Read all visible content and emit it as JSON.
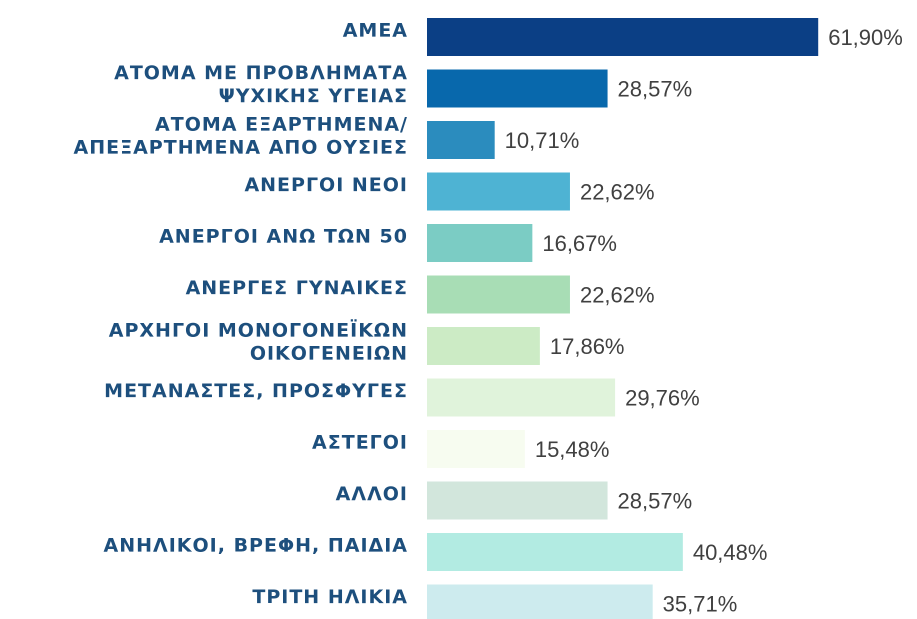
{
  "chart_data": {
    "type": "bar",
    "orientation": "horizontal",
    "categories": [
      "ΑΜΕΑ",
      "ΑΤΟΜΑ ΜΕ ΠΡΟΒΛΗΜΑΤΑ\nΨΥΧΙΚΗΣ ΥΓΕΙΑΣ",
      "ΑΤΟΜΑ ΕΞΑΡΤΗΜΕΝΑ/\nΑΠΕΞΑΡΤΗΜΕΝΑ ΑΠΟ ΟΥΣΙΕΣ",
      "ΑΝΕΡΓΟΙ ΝΕΟΙ",
      "ΑΝΕΡΓΟΙ ΑΝΩ ΤΩΝ 50",
      "ΑΝΕΡΓΕΣ ΓΥΝΑΙΚΕΣ",
      "ΑΡΧΗΓΟΙ ΜΟΝΟΓΟΝΕΪΚΩΝ\nΟΙΚΟΓΕΝΕΙΩΝ",
      "ΜΕΤΑΝΑΣΤΕΣ, ΠΡΟΣΦΥΓΕΣ",
      "ΑΣΤΕΓΟΙ",
      "ΑΛΛΟΙ",
      "ΑΝΗΛΙΚΟΙ, ΒΡΕΦΗ, ΠΑΙΔΙΑ",
      "ΤΡΙΤΗ ΗΛΙΚΙΑ"
    ],
    "values": [
      61.9,
      28.57,
      10.71,
      22.62,
      16.67,
      22.62,
      17.86,
      29.76,
      15.48,
      28.57,
      40.48,
      35.71
    ],
    "value_labels": [
      "61,90%",
      "28,57%",
      "10,71%",
      "22,62%",
      "16,67%",
      "22,62%",
      "17,86%",
      "29,76%",
      "15,48%",
      "28,57%",
      "40,48%",
      "35,71%"
    ],
    "colors": [
      "#0b3f85",
      "#0868ac",
      "#2b8cbe",
      "#4eb3d3",
      "#7bccc4",
      "#a8ddb5",
      "#ccebc5",
      "#e0f3db",
      "#f7fcf0",
      "#d2e6dc",
      "#b2ebe2",
      "#cdebee"
    ]
  }
}
